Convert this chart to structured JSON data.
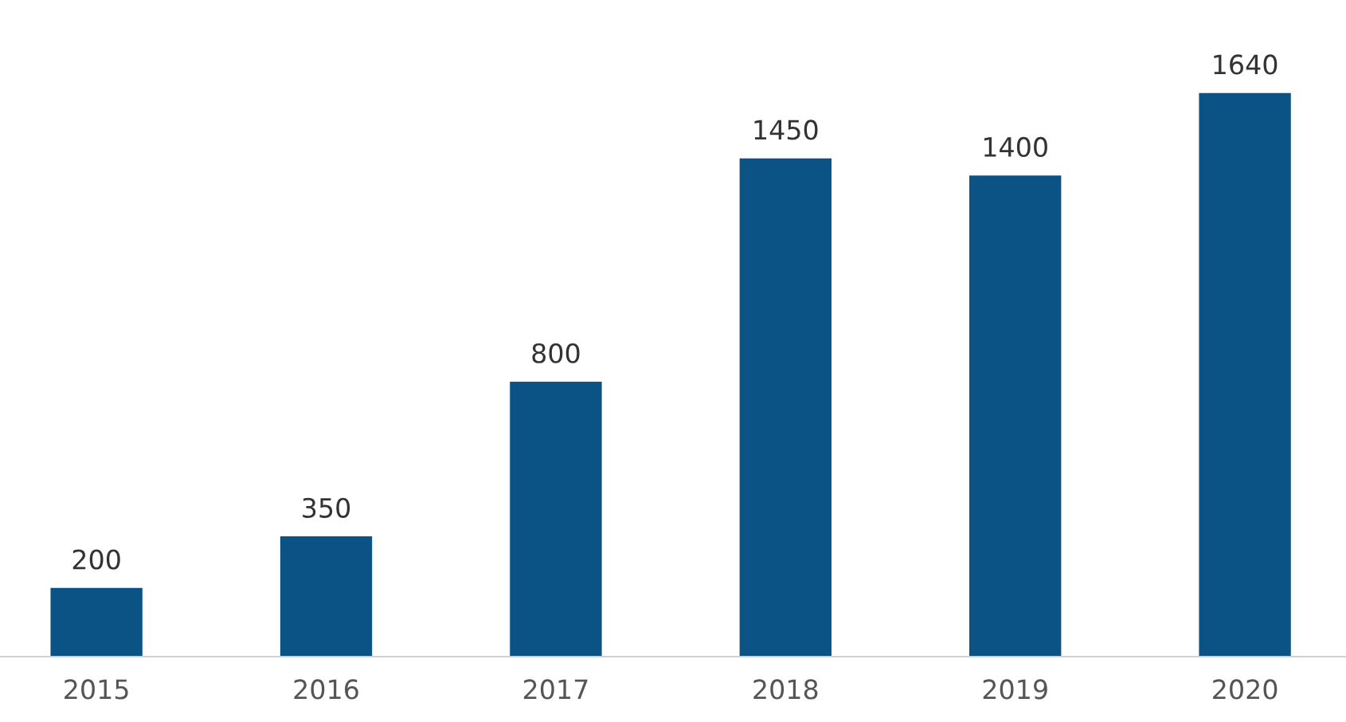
{
  "chart_data": {
    "type": "bar",
    "categories": [
      "2015",
      "2016",
      "2017",
      "2018",
      "2019",
      "2020"
    ],
    "values": [
      200,
      350,
      800,
      1450,
      1400,
      1640
    ],
    "color": "#0b5285",
    "data_labels": true,
    "grid": false,
    "legend": false
  }
}
